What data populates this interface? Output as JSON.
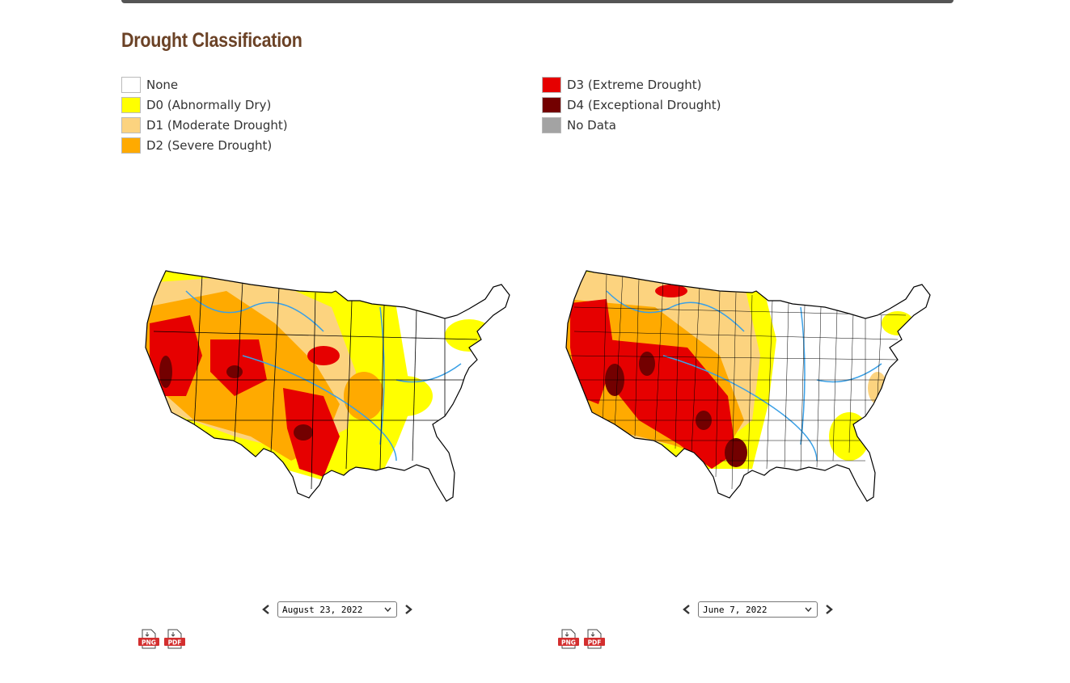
{
  "title": "Drought Classification",
  "legend": [
    {
      "label": "None",
      "color": "#ffffff"
    },
    {
      "label": "D0 (Abnormally Dry)",
      "color": "#ffff00"
    },
    {
      "label": "D1 (Moderate Drought)",
      "color": "#fcd37f"
    },
    {
      "label": "D2 (Severe Drought)",
      "color": "#ffaa00"
    },
    {
      "label": "D3 (Extreme Drought)",
      "color": "#e60000"
    },
    {
      "label": "D4 (Exceptional Drought)",
      "color": "#730000"
    },
    {
      "label": "No Data",
      "color": "#a3a3a3"
    }
  ],
  "maps": [
    {
      "date": "August 23, 2022",
      "download": {
        "png": "PNG",
        "pdf": "PDF"
      }
    },
    {
      "date": "June 7, 2022",
      "download": {
        "png": "PNG",
        "pdf": "PDF"
      }
    }
  ],
  "icons": [
    "chevron-left-icon",
    "chevron-right-icon",
    "chevron-down-icon",
    "png-download-icon",
    "pdf-download-icon"
  ]
}
